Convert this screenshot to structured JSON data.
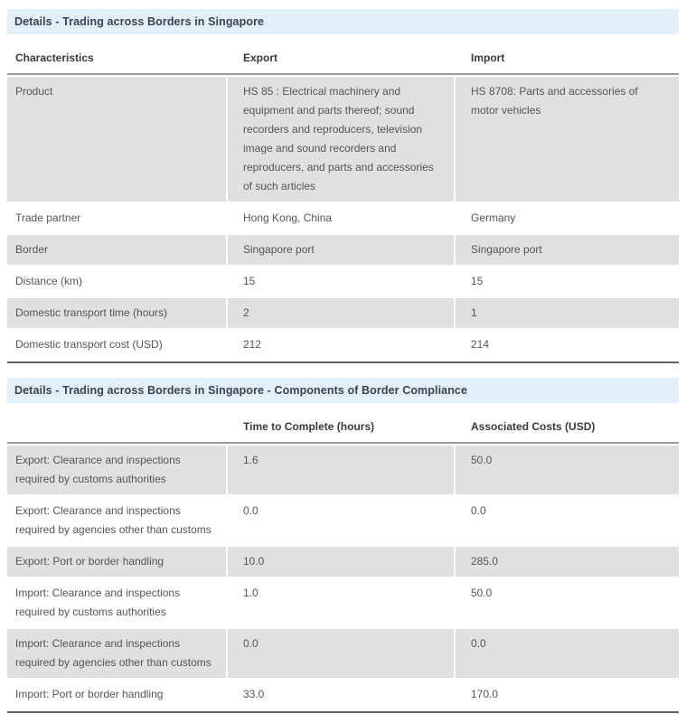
{
  "colors": {
    "section_header_bg": "#e2eef9",
    "section_header_text": "#3c434c",
    "row_alt_bg": "#e0e0e0",
    "body_text": "#555555",
    "column_header_text": "#3a3a3a",
    "header_underline": "#9b9b9b",
    "table_bottom_border": "#616161"
  },
  "section1": {
    "title": "Details - Trading across Borders in Singapore",
    "table": {
      "columns": [
        "Characteristics",
        "Export",
        "Import"
      ],
      "rows": [
        {
          "label": "Product",
          "export": "HS 85 : Electrical machinery and equipment and parts thereof; sound recorders and reproducers, television image and sound recorders and reproducers, and parts and accessories of such articles",
          "import": "HS 8708: Parts and accessories of motor vehicles"
        },
        {
          "label": "Trade partner",
          "export": "Hong Kong, China",
          "import": "Germany"
        },
        {
          "label": "Border",
          "export": "Singapore port",
          "import": "Singapore port"
        },
        {
          "label": "Distance (km)",
          "export": "15",
          "import": "15"
        },
        {
          "label": "Domestic transport time (hours)",
          "export": "2",
          "import": "1"
        },
        {
          "label": "Domestic transport cost (USD)",
          "export": "212",
          "import": "214"
        }
      ]
    }
  },
  "section2": {
    "title": "Details - Trading across Borders in Singapore - Components of Border Compliance",
    "table": {
      "columns": [
        "",
        "Time to Complete (hours)",
        "Associated Costs (USD)"
      ],
      "rows": [
        {
          "label": "Export: Clearance and inspections required by customs authorities",
          "time": "1.6",
          "cost": "50.0"
        },
        {
          "label": "Export: Clearance and inspections required by agencies other than customs",
          "time": "0.0",
          "cost": "0.0"
        },
        {
          "label": "Export: Port or border handling",
          "time": "10.0",
          "cost": "285.0"
        },
        {
          "label": "Import: Clearance and inspections required by customs authorities",
          "time": "1.0",
          "cost": "50.0"
        },
        {
          "label": "Import: Clearance and inspections required by agencies other than customs",
          "time": "0.0",
          "cost": "0.0"
        },
        {
          "label": "Import: Port or border handling",
          "time": "33.0",
          "cost": "170.0"
        }
      ]
    }
  }
}
